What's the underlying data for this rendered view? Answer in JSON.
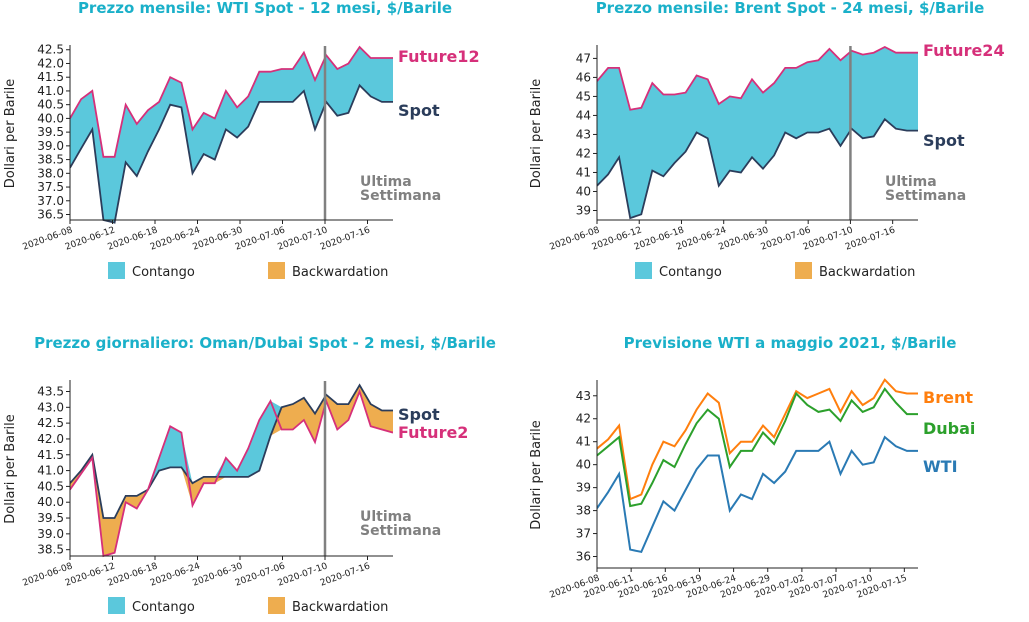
{
  "colors": {
    "title": "#1ab0c9",
    "contango": "#5bc8dc",
    "backwardation": "#eead4f",
    "spot": "#2b3d5b",
    "future": "#d6307a",
    "vline": "#808080",
    "wti": "#2a7ab4",
    "brent": "#ff7f0e",
    "dubai": "#2ca02c"
  },
  "chart_data": [
    {
      "type": "area",
      "title": "Prezzo mensile: WTI Spot - 12 mesi, $/Barile",
      "ylabel": "Dollari per Barile",
      "ylim": [
        36.3,
        42.6
      ],
      "yticks": [
        "36.5",
        "37.0",
        "37.5",
        "38.0",
        "38.5",
        "39.0",
        "39.5",
        "40.0",
        "40.5",
        "41.0",
        "41.5",
        "42.0",
        "42.5"
      ],
      "xticks": [
        "2020-06-08",
        "2020-06-12",
        "2020-06-18",
        "2020-06-24",
        "2020-06-30",
        "2020-07-06",
        "2020-07-10",
        "2020-07-16"
      ],
      "x": [
        "06-08",
        "06-09",
        "06-10",
        "06-11",
        "06-12",
        "06-15",
        "06-16",
        "06-17",
        "06-18",
        "06-19",
        "06-22",
        "06-23",
        "06-24",
        "06-25",
        "06-26",
        "06-29",
        "06-30",
        "07-01",
        "07-02",
        "07-06",
        "07-07",
        "07-08",
        "07-09",
        "07-10",
        "07-13",
        "07-14",
        "07-15",
        "07-16",
        "07-17",
        "07-20"
      ],
      "series": [
        {
          "name": "Spot",
          "values": [
            38.2,
            38.9,
            39.6,
            36.3,
            36.2,
            38.4,
            37.9,
            38.8,
            39.6,
            40.5,
            40.4,
            38.0,
            38.7,
            38.5,
            39.6,
            39.3,
            39.7,
            40.6,
            40.6,
            40.6,
            40.6,
            41.0,
            39.6,
            40.6,
            40.1,
            40.2,
            41.2,
            40.8,
            40.6,
            40.6
          ],
          "color": "#2b3d5b"
        },
        {
          "name": "Future12",
          "values": [
            40.0,
            40.7,
            41.0,
            38.6,
            38.6,
            40.5,
            39.8,
            40.3,
            40.6,
            41.5,
            41.3,
            39.6,
            40.2,
            40.0,
            41.0,
            40.4,
            40.8,
            41.7,
            41.7,
            41.8,
            41.8,
            42.4,
            41.4,
            42.3,
            41.8,
            42.0,
            42.6,
            42.2,
            42.2,
            42.2
          ],
          "color": "#d6307a"
        }
      ],
      "fills": [
        "Contango",
        "Backwardation"
      ],
      "vline_at_tick": "2020-07-10",
      "annotation": [
        "Ultima",
        "Settimana"
      ]
    },
    {
      "type": "area",
      "title": "Prezzo mensile: Brent Spot - 24 mesi, $/Barile",
      "ylabel": "Dollari per Barile",
      "ylim": [
        38.5,
        47.6
      ],
      "yticks": [
        "39",
        "40",
        "41",
        "42",
        "43",
        "44",
        "45",
        "46",
        "47"
      ],
      "xticks": [
        "2020-06-08",
        "2020-06-12",
        "2020-06-18",
        "2020-06-24",
        "2020-06-30",
        "2020-07-06",
        "2020-07-10",
        "2020-07-16"
      ],
      "x": [
        "06-08",
        "06-09",
        "06-10",
        "06-11",
        "06-12",
        "06-15",
        "06-16",
        "06-17",
        "06-18",
        "06-19",
        "06-22",
        "06-23",
        "06-24",
        "06-25",
        "06-26",
        "06-29",
        "06-30",
        "07-01",
        "07-02",
        "07-06",
        "07-07",
        "07-08",
        "07-09",
        "07-10",
        "07-13",
        "07-14",
        "07-15",
        "07-16",
        "07-17",
        "07-20"
      ],
      "series": [
        {
          "name": "Spot",
          "values": [
            40.3,
            40.9,
            41.8,
            38.6,
            38.8,
            41.1,
            40.8,
            41.5,
            42.1,
            43.1,
            42.8,
            40.3,
            41.1,
            41.0,
            41.8,
            41.2,
            41.9,
            43.1,
            42.8,
            43.1,
            43.1,
            43.3,
            42.4,
            43.3,
            42.8,
            42.9,
            43.8,
            43.3,
            43.2,
            43.2
          ],
          "color": "#2b3d5b"
        },
        {
          "name": "Future24",
          "values": [
            45.8,
            46.5,
            46.5,
            44.3,
            44.4,
            45.7,
            45.1,
            45.1,
            45.2,
            46.1,
            45.9,
            44.6,
            45.0,
            44.9,
            45.9,
            45.2,
            45.7,
            46.5,
            46.5,
            46.8,
            46.9,
            47.5,
            46.9,
            47.4,
            47.2,
            47.3,
            47.6,
            47.3,
            47.3,
            47.3
          ],
          "color": "#d6307a"
        }
      ],
      "fills": [
        "Contango",
        "Backwardation"
      ],
      "vline_at_tick": "2020-07-10",
      "annotation": [
        "Ultima",
        "Settimana"
      ]
    },
    {
      "type": "area",
      "title": "Prezzo giornaliero: Oman/Dubai Spot - 2 mesi, $/Barile",
      "ylabel": "Dollari per Barile",
      "ylim": [
        38.3,
        43.8
      ],
      "yticks": [
        "38.5",
        "39.0",
        "39.5",
        "40.0",
        "40.5",
        "41.0",
        "41.5",
        "42.0",
        "42.5",
        "43.0",
        "43.5"
      ],
      "xticks": [
        "2020-06-08",
        "2020-06-12",
        "2020-06-18",
        "2020-06-24",
        "2020-06-30",
        "2020-07-06",
        "2020-07-10",
        "2020-07-16"
      ],
      "x": [
        "06-08",
        "06-09",
        "06-10",
        "06-11",
        "06-12",
        "06-15",
        "06-16",
        "06-17",
        "06-18",
        "06-19",
        "06-22",
        "06-23",
        "06-24",
        "06-25",
        "06-26",
        "06-29",
        "06-30",
        "07-01",
        "07-02",
        "07-06",
        "07-07",
        "07-08",
        "07-09",
        "07-10",
        "07-13",
        "07-14",
        "07-15",
        "07-16",
        "07-17",
        "07-20"
      ],
      "series": [
        {
          "name": "Spot",
          "values": [
            40.6,
            41.0,
            41.5,
            39.5,
            39.5,
            40.2,
            40.2,
            40.4,
            41.0,
            41.1,
            41.1,
            40.6,
            40.8,
            40.8,
            40.8,
            40.8,
            40.8,
            41.0,
            42.1,
            43.0,
            43.1,
            43.3,
            42.8,
            43.4,
            43.1,
            43.1,
            43.7,
            43.1,
            42.9,
            42.9
          ],
          "color": "#2b3d5b"
        },
        {
          "name": "Future2",
          "values": [
            40.4,
            40.9,
            41.4,
            38.3,
            38.4,
            40.0,
            39.8,
            40.4,
            41.4,
            42.4,
            42.2,
            39.9,
            40.6,
            40.6,
            41.4,
            41.0,
            41.7,
            42.6,
            43.2,
            42.3,
            42.3,
            42.6,
            41.9,
            43.2,
            42.3,
            42.6,
            43.5,
            42.4,
            42.3,
            42.2
          ],
          "color": "#d6307a"
        }
      ],
      "fills": [
        "Contango",
        "Backwardation"
      ],
      "vline_at_tick": "2020-07-10",
      "annotation": [
        "Ultima",
        "Settimana"
      ]
    },
    {
      "type": "line",
      "title": "Previsione WTI a maggio 2021, $/Barile",
      "ylabel": "Dollari per Barile",
      "ylim": [
        35.5,
        43.6
      ],
      "yticks": [
        "36",
        "37",
        "38",
        "39",
        "40",
        "41",
        "42",
        "43"
      ],
      "xticks": [
        "2020-06-08",
        "2020-06-11",
        "2020-06-16",
        "2020-06-19",
        "2020-06-24",
        "2020-06-29",
        "2020-07-02",
        "2020-07-07",
        "2020-07-10",
        "2020-07-15"
      ],
      "x": [
        "06-08",
        "06-09",
        "06-10",
        "06-11",
        "06-12",
        "06-15",
        "06-16",
        "06-17",
        "06-18",
        "06-19",
        "06-22",
        "06-23",
        "06-24",
        "06-25",
        "06-26",
        "06-29",
        "06-30",
        "07-01",
        "07-02",
        "07-06",
        "07-07",
        "07-08",
        "07-09",
        "07-10",
        "07-13",
        "07-14",
        "07-15",
        "07-16",
        "07-17",
        "07-20"
      ],
      "series": [
        {
          "name": "Brent",
          "values": [
            40.7,
            41.1,
            41.7,
            38.5,
            38.7,
            40.0,
            41.0,
            40.8,
            41.5,
            42.4,
            43.1,
            42.7,
            40.5,
            41.0,
            41.0,
            41.7,
            41.2,
            42.2,
            43.2,
            42.9,
            43.1,
            43.3,
            42.3,
            43.2,
            42.6,
            42.9,
            43.7,
            43.2,
            43.1,
            43.1
          ],
          "color": "#ff7f0e"
        },
        {
          "name": "Dubai",
          "values": [
            40.4,
            40.8,
            41.2,
            38.2,
            38.3,
            39.2,
            40.2,
            39.9,
            40.9,
            41.8,
            42.4,
            42.0,
            39.9,
            40.6,
            40.6,
            41.4,
            40.9,
            41.9,
            43.1,
            42.6,
            42.3,
            42.4,
            41.9,
            42.8,
            42.3,
            42.5,
            43.3,
            42.7,
            42.2,
            42.2
          ],
          "color": "#2ca02c"
        },
        {
          "name": "WTI",
          "values": [
            38.1,
            38.8,
            39.6,
            36.3,
            36.2,
            37.3,
            38.4,
            38.0,
            38.9,
            39.8,
            40.4,
            40.4,
            38.0,
            38.7,
            38.5,
            39.6,
            39.2,
            39.7,
            40.6,
            40.6,
            40.6,
            41.0,
            39.6,
            40.6,
            40.0,
            40.1,
            41.2,
            40.8,
            40.6,
            40.6
          ],
          "color": "#2a7ab4"
        }
      ]
    }
  ],
  "legend": {
    "contango": "Contango",
    "backwardation": "Backwardation"
  }
}
